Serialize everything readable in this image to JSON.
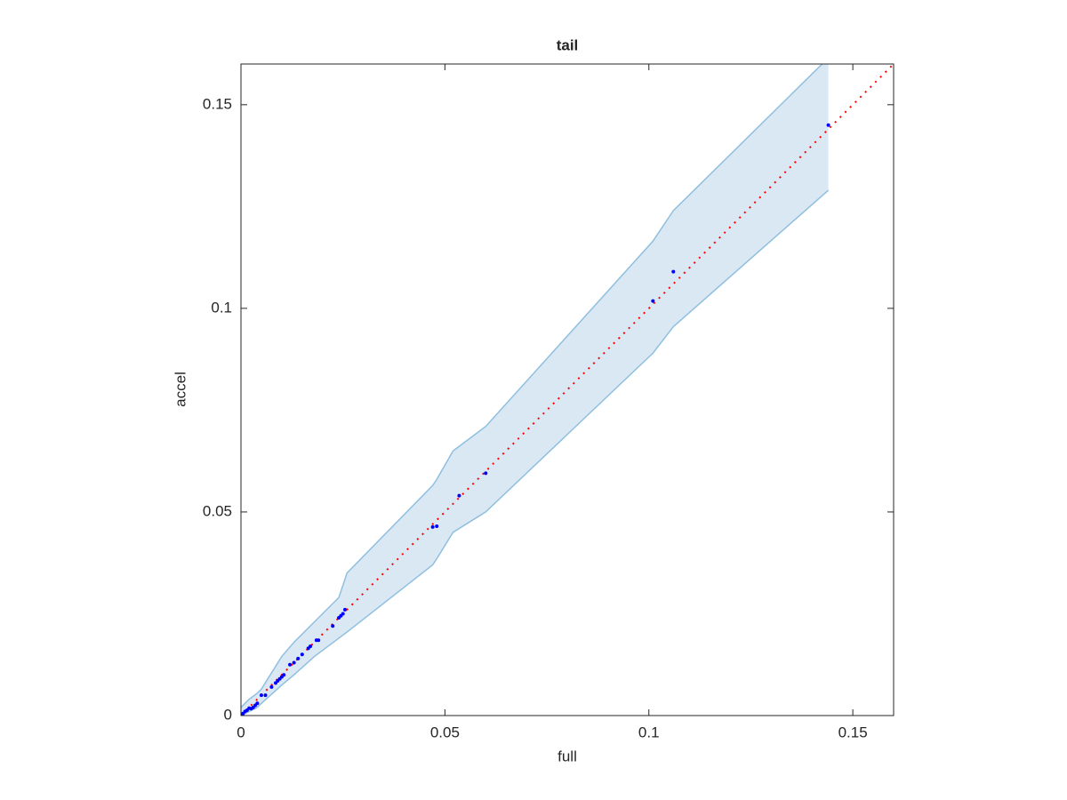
{
  "chart_data": {
    "type": "scatter",
    "title": "tail",
    "x_label": "full",
    "y_label": "accel",
    "xlim": [
      0,
      0.16
    ],
    "ylim": [
      0,
      0.16
    ],
    "xticks": [
      0,
      0.05,
      0.1,
      0.15
    ],
    "yticks": [
      0,
      0.05,
      0.1,
      0.15
    ],
    "grid": false,
    "band": {
      "color": "#dae8f4",
      "edge_color": "#8fbfdf",
      "x": [
        0,
        0.002,
        0.004,
        0.005,
        0.01,
        0.013,
        0.018,
        0.024,
        0.026,
        0.047,
        0.048,
        0.052,
        0.06,
        0.101,
        0.106,
        0.144
      ],
      "upper": [
        0.002,
        0.004,
        0.0055,
        0.0065,
        0.0145,
        0.018,
        0.023,
        0.029,
        0.035,
        0.0565,
        0.058,
        0.065,
        0.071,
        0.1165,
        0.124,
        0.1615
      ],
      "lower": [
        0,
        0.001,
        0.002,
        0.003,
        0.0075,
        0.01,
        0.0145,
        0.019,
        0.0205,
        0.037,
        0.0385,
        0.045,
        0.05,
        0.089,
        0.0955,
        0.129
      ]
    },
    "reference_line": {
      "color": "#ff0000",
      "x": [
        0,
        0.16
      ],
      "y": [
        0,
        0.16
      ]
    },
    "points": {
      "color": "#0000ff",
      "x": [
        0.0002,
        0.0005,
        0.001,
        0.0015,
        0.002,
        0.0025,
        0.003,
        0.0035,
        0.004,
        0.005,
        0.006,
        0.0075,
        0.0085,
        0.009,
        0.0095,
        0.01,
        0.0105,
        0.012,
        0.013,
        0.014,
        0.015,
        0.0165,
        0.017,
        0.0185,
        0.019,
        0.0225,
        0.024,
        0.0245,
        0.025,
        0.0255,
        0.047,
        0.048,
        0.0535,
        0.06,
        0.101,
        0.106,
        0.144
      ],
      "y": [
        0.0002,
        0.0005,
        0.001,
        0.0013,
        0.0018,
        0.0017,
        0.002,
        0.0025,
        0.003,
        0.005,
        0.005,
        0.007,
        0.008,
        0.0085,
        0.009,
        0.0095,
        0.01,
        0.0125,
        0.013,
        0.014,
        0.015,
        0.0165,
        0.017,
        0.0185,
        0.0185,
        0.022,
        0.024,
        0.0245,
        0.025,
        0.026,
        0.0463,
        0.0465,
        0.054,
        0.0595,
        0.1018,
        0.109,
        0.145
      ]
    }
  }
}
